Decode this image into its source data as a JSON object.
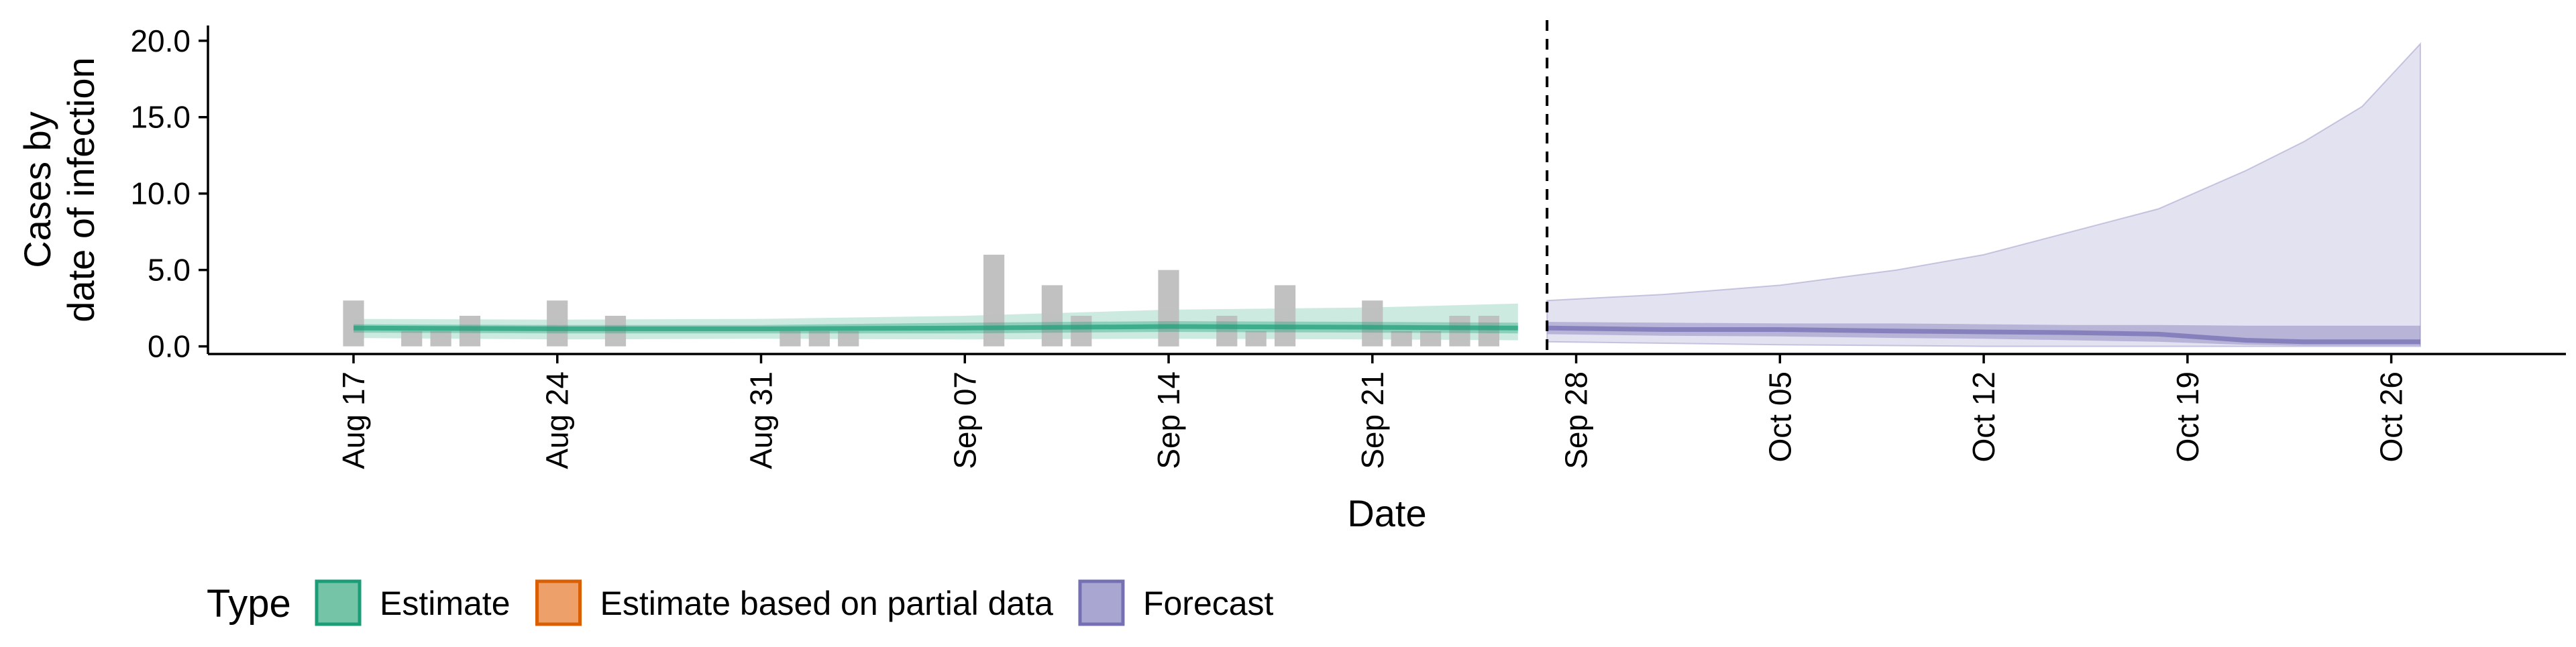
{
  "chart_data": {
    "type": "bar",
    "title": "",
    "xlabel": "Date",
    "ylabel_lines": [
      "Cases by",
      "date of infection"
    ],
    "ylim": [
      -0.5,
      21.0
    ],
    "yticks": [
      0.0,
      5.0,
      10.0,
      15.0,
      20.0
    ],
    "ytick_labels": [
      "0.0",
      "5.0",
      "10.0",
      "15.0",
      "20.0"
    ],
    "xlim": [
      "2020-08-12",
      "2020-11-01"
    ],
    "xticks": [
      {
        "date": "2020-08-17",
        "label": "Aug 17"
      },
      {
        "date": "2020-08-24",
        "label": "Aug 24"
      },
      {
        "date": "2020-08-31",
        "label": "Aug 31"
      },
      {
        "date": "2020-09-07",
        "label": "Sep 07"
      },
      {
        "date": "2020-09-14",
        "label": "Sep 14"
      },
      {
        "date": "2020-09-21",
        "label": "Sep 21"
      },
      {
        "date": "2020-09-28",
        "label": "Sep 28"
      },
      {
        "date": "2020-10-05",
        "label": "Oct 05"
      },
      {
        "date": "2020-10-12",
        "label": "Oct 12"
      },
      {
        "date": "2020-10-19",
        "label": "Oct 19"
      },
      {
        "date": "2020-10-26",
        "label": "Oct 26"
      }
    ],
    "forecast_start": "2020-09-27",
    "reported_cases": [
      {
        "date": "2020-08-17",
        "value": 3
      },
      {
        "date": "2020-08-19",
        "value": 1
      },
      {
        "date": "2020-08-20",
        "value": 1
      },
      {
        "date": "2020-08-21",
        "value": 2
      },
      {
        "date": "2020-08-24",
        "value": 3
      },
      {
        "date": "2020-08-26",
        "value": 2
      },
      {
        "date": "2020-09-01",
        "value": 1
      },
      {
        "date": "2020-09-02",
        "value": 1
      },
      {
        "date": "2020-09-03",
        "value": 1
      },
      {
        "date": "2020-09-08",
        "value": 6
      },
      {
        "date": "2020-09-10",
        "value": 4
      },
      {
        "date": "2020-09-11",
        "value": 2
      },
      {
        "date": "2020-09-14",
        "value": 5
      },
      {
        "date": "2020-09-16",
        "value": 2
      },
      {
        "date": "2020-09-17",
        "value": 1
      },
      {
        "date": "2020-09-18",
        "value": 4
      },
      {
        "date": "2020-09-21",
        "value": 3
      },
      {
        "date": "2020-09-22",
        "value": 1
      },
      {
        "date": "2020-09-23",
        "value": 1
      },
      {
        "date": "2020-09-24",
        "value": 2
      },
      {
        "date": "2020-09-25",
        "value": 2
      }
    ],
    "estimate": {
      "dates": [
        "2020-08-17",
        "2020-08-24",
        "2020-08-31",
        "2020-09-07",
        "2020-09-14",
        "2020-09-21",
        "2020-09-26"
      ],
      "median": [
        1.2,
        1.15,
        1.15,
        1.2,
        1.3,
        1.25,
        1.2
      ],
      "inner_lower": [
        0.9,
        0.85,
        0.85,
        0.85,
        0.95,
        0.9,
        0.85
      ],
      "inner_upper": [
        1.45,
        1.4,
        1.4,
        1.55,
        1.65,
        1.6,
        1.55
      ],
      "outer_lower": [
        0.55,
        0.45,
        0.5,
        0.45,
        0.5,
        0.45,
        0.4
      ],
      "outer_upper": [
        1.8,
        1.75,
        1.8,
        2.0,
        2.4,
        2.55,
        2.8
      ]
    },
    "forecast": {
      "dates": [
        "2020-09-27",
        "2020-10-01",
        "2020-10-05",
        "2020-10-09",
        "2020-10-12",
        "2020-10-15",
        "2020-10-18",
        "2020-10-21",
        "2020-10-23",
        "2020-10-25",
        "2020-10-27"
      ],
      "median": [
        1.2,
        1.1,
        1.1,
        1.0,
        0.95,
        0.9,
        0.8,
        0.4,
        0.3,
        0.3,
        0.3
      ],
      "inner_lower": [
        0.8,
        0.7,
        0.65,
        0.55,
        0.5,
        0.4,
        0.3,
        0.1,
        0.05,
        0.05,
        0.05
      ],
      "inner_upper": [
        1.6,
        1.55,
        1.5,
        1.5,
        1.45,
        1.4,
        1.4,
        1.35,
        1.35,
        1.35,
        1.35
      ],
      "outer_lower": [
        0.3,
        0.2,
        0.1,
        0.05,
        0.0,
        0.0,
        0.0,
        0.0,
        0.0,
        0.0,
        0.0
      ],
      "outer_upper": [
        3.0,
        3.4,
        4.0,
        5.0,
        6.0,
        7.5,
        9.0,
        11.5,
        13.4,
        15.7,
        19.8
      ]
    },
    "legend": {
      "title": "Type",
      "position": "bottom",
      "items": [
        {
          "label": "Estimate",
          "fill": "#76c4a8",
          "border": "#1b9e77"
        },
        {
          "label": "Estimate based on partial data",
          "fill": "#eea06a",
          "border": "#d95f02"
        },
        {
          "label": "Forecast",
          "fill": "#a9a6d1",
          "border": "#7570b3"
        }
      ]
    },
    "colors": {
      "bars": "#bebebe",
      "estimate": "#1b9e77",
      "forecast": "#7570b3",
      "axis": "#000000",
      "forecast_line": "#000000"
    },
    "grid": false
  }
}
